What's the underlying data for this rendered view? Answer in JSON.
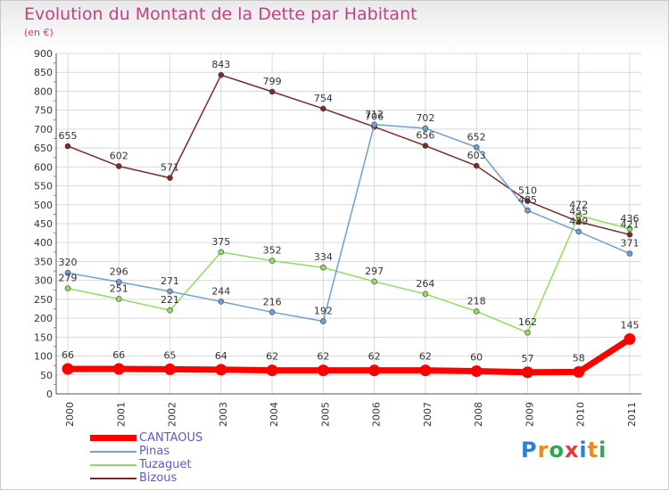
{
  "header": {
    "title": "Evolution du Montant de la Dette par Habitant",
    "subtitle": "(en €)"
  },
  "logo": {
    "text": "Proxiti"
  },
  "colors": {
    "CANTAOUS": "#ff0000",
    "Pinas": "#6ea1d2",
    "Tuzaguet": "#8fdd5f",
    "Bizous": "#7b2b2b",
    "title": "#c3427f",
    "legend_text": "#5a5ad6"
  },
  "chart_data": {
    "type": "line",
    "title": "Evolution du Montant de la Dette par Habitant",
    "subtitle": "(en €)",
    "xlabel": "",
    "ylabel": "",
    "x": [
      "2000",
      "2001",
      "2002",
      "2003",
      "2004",
      "2005",
      "2006",
      "2007",
      "2008",
      "2009",
      "2010",
      "2011"
    ],
    "ylim": [
      0,
      900
    ],
    "yticks": [
      0,
      50,
      100,
      150,
      200,
      250,
      300,
      350,
      400,
      450,
      500,
      550,
      600,
      650,
      700,
      750,
      800,
      850,
      900
    ],
    "grid": true,
    "legend_position": "bottom-left",
    "series": [
      {
        "name": "CANTAOUS",
        "values": [
          66,
          66,
          65,
          64,
          62,
          62,
          62,
          62,
          60,
          57,
          58,
          145
        ]
      },
      {
        "name": "Pinas",
        "values": [
          320,
          296,
          271,
          244,
          216,
          192,
          712,
          702,
          652,
          485,
          429,
          371
        ]
      },
      {
        "name": "Tuzaguet",
        "values": [
          279,
          251,
          221,
          375,
          352,
          334,
          297,
          264,
          218,
          162,
          472,
          436
        ]
      },
      {
        "name": "Bizous",
        "values": [
          655,
          602,
          571,
          843,
          799,
          754,
          706,
          656,
          603,
          510,
          455,
          421
        ]
      }
    ]
  }
}
